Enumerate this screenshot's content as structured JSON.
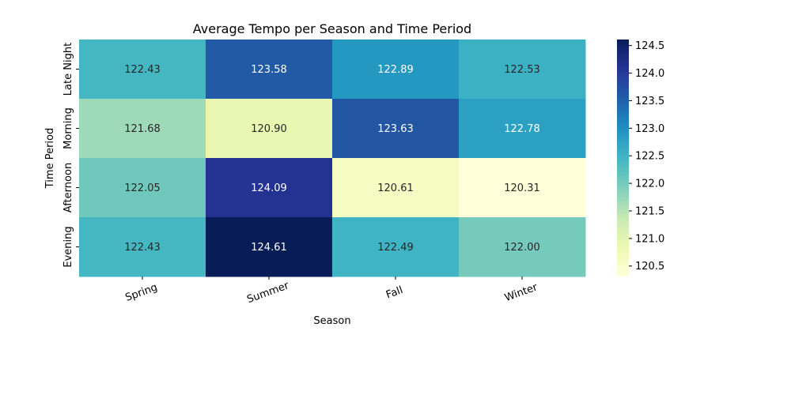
{
  "chart_data": {
    "type": "heatmap",
    "title": "Average Tempo per Season and Time Period",
    "xlabel": "Season",
    "ylabel": "Time Period",
    "x_categories": [
      "Spring",
      "Summer",
      "Fall",
      "Winter"
    ],
    "y_categories": [
      "Late Night",
      "Morning",
      "Afternoon",
      "Evening"
    ],
    "values": [
      [
        122.43,
        123.58,
        122.89,
        122.53
      ],
      [
        121.68,
        120.9,
        123.63,
        122.78
      ],
      [
        122.05,
        124.09,
        120.61,
        120.31
      ],
      [
        122.43,
        124.61,
        122.49,
        122.0
      ]
    ],
    "value_labels": [
      [
        "122.43",
        "123.58",
        "122.89",
        "122.53"
      ],
      [
        "121.68",
        "120.90",
        "123.63",
        "122.78"
      ],
      [
        "122.05",
        "124.09",
        "120.61",
        "120.31"
      ],
      [
        "122.43",
        "124.61",
        "122.49",
        "122.00"
      ]
    ],
    "colormap": "YlGnBu",
    "color_range": [
      120.31,
      124.61
    ],
    "colorbar_ticks": [
      120.5,
      121.0,
      121.5,
      122.0,
      122.5,
      123.0,
      123.5,
      124.0,
      124.5
    ],
    "colorbar_tick_labels": [
      "120.5",
      "121.0",
      "121.5",
      "122.0",
      "122.5",
      "123.0",
      "123.5",
      "124.0",
      "124.5"
    ],
    "legend": "colorbar-right"
  }
}
